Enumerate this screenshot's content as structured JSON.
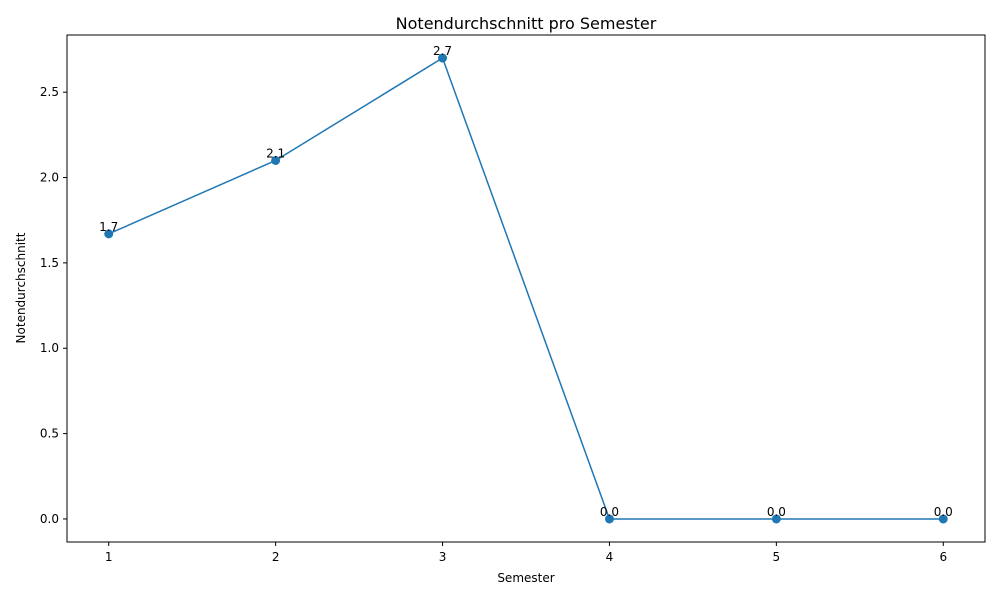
{
  "chart_data": {
    "type": "line",
    "title": "Notendurchschnitt pro Semester",
    "xlabel": "Semester",
    "ylabel": "Notendurchschnitt",
    "x": [
      1,
      2,
      3,
      4,
      5,
      6
    ],
    "x_tick_labels": [
      "1",
      "2",
      "3",
      "4",
      "5",
      "6"
    ],
    "series": [
      {
        "values": [
          1.67,
          2.1,
          2.7,
          0.0,
          0.0,
          0.0
        ],
        "data_labels": [
          "1.7",
          "2.1",
          "2.7",
          "0.0",
          "0.0",
          "0.0"
        ],
        "color": "#1f77b4",
        "marker": "circle"
      }
    ],
    "xlim": [
      0.75,
      6.25
    ],
    "ylim": [
      -0.135,
      2.835
    ],
    "y_ticks": [
      0.0,
      0.5,
      1.0,
      1.5,
      2.0,
      2.5
    ],
    "y_tick_labels": [
      "0.0",
      "0.5",
      "1.0",
      "1.5",
      "2.0",
      "2.5"
    ],
    "grid": false,
    "legend": "none"
  }
}
